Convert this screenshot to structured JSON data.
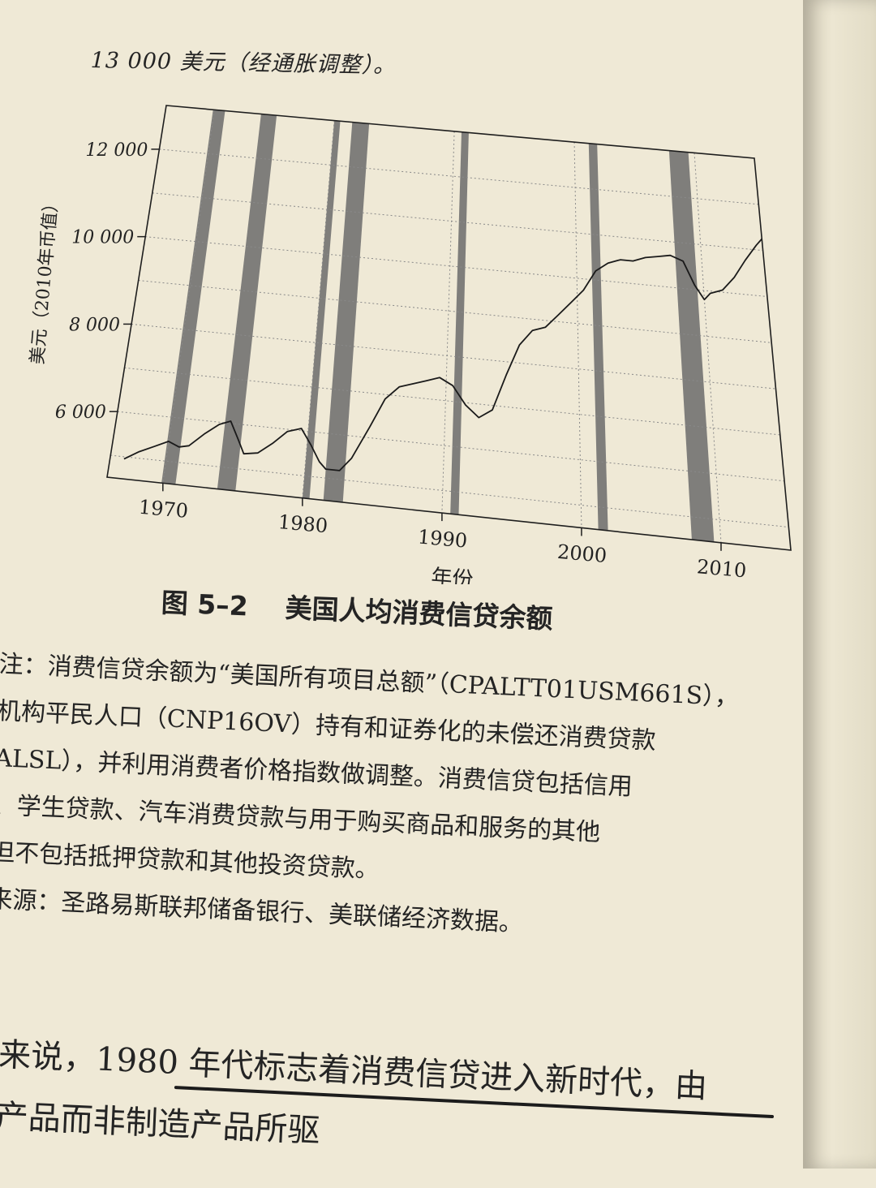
{
  "top_line": "13 000 美元（经通胀调整）。",
  "figure": {
    "number": "图 5–2",
    "title": "美国人均消费信贷余额"
  },
  "notes": [
    "注：消费信贷余额为“美国所有项目总额”（CPALTT01USM661S），",
    "机构平民人口（CNP16OV）持有和证券化的未偿还消费贷款",
    "ALSL），并利用消费者价格指数做调整。消费信贷包括信用",
    "、学生贷款、汽车消费贷款与用于购买商品和服务的其他",
    "但不包括抵押贷款和其他投资贷款。",
    "来源：圣路易斯联邦储备银行、美联储经济数据。"
  ],
  "body_lines": [
    "来说，1980 年代标志着消费信贷进入新时代，由",
    "产品而非制造产品所驱"
  ],
  "chart_data": {
    "type": "line",
    "title": "",
    "xlabel": "年份",
    "ylabel": "美元（2010年币值）",
    "xlim": [
      1966,
      2015
    ],
    "ylim": [
      4500,
      13000
    ],
    "x_ticks": [
      1970,
      1980,
      1990,
      2000,
      2010
    ],
    "x_tick_labels": [
      "1970",
      "1980",
      "1990",
      "2000",
      "2010"
    ],
    "y_ticks": [
      6000,
      8000,
      10000,
      12000
    ],
    "y_tick_labels": [
      "6 000",
      "8 000",
      "10 000",
      "12 000"
    ],
    "grid": true,
    "recession_bands": [
      [
        1969.9,
        1970.9
      ],
      [
        1973.9,
        1975.2
      ],
      [
        1980.0,
        1980.5
      ],
      [
        1981.5,
        1982.9
      ],
      [
        1990.6,
        1991.2
      ],
      [
        2001.2,
        2001.9
      ],
      [
        2007.9,
        2009.5
      ]
    ],
    "colors": {
      "line": "#1a1a1a",
      "band": "#6b6b6b",
      "grid": "#8a8a8a"
    },
    "series": [
      {
        "points": [
          [
            1967.0,
            4950
          ],
          [
            1968.0,
            5150
          ],
          [
            1969.0,
            5300
          ],
          [
            1970.0,
            5450
          ],
          [
            1970.8,
            5350
          ],
          [
            1971.5,
            5400
          ],
          [
            1972.5,
            5700
          ],
          [
            1973.5,
            5950
          ],
          [
            1974.3,
            6050
          ],
          [
            1975.0,
            5650
          ],
          [
            1975.5,
            5350
          ],
          [
            1976.5,
            5400
          ],
          [
            1977.5,
            5650
          ],
          [
            1978.5,
            5950
          ],
          [
            1979.5,
            6050
          ],
          [
            1980.3,
            5700
          ],
          [
            1981.0,
            5350
          ],
          [
            1981.5,
            5200
          ],
          [
            1982.5,
            5200
          ],
          [
            1983.3,
            5500
          ],
          [
            1984.5,
            6250
          ],
          [
            1985.5,
            6900
          ],
          [
            1986.5,
            7200
          ],
          [
            1987.5,
            7300
          ],
          [
            1988.5,
            7400
          ],
          [
            1989.5,
            7500
          ],
          [
            1990.5,
            7350
          ],
          [
            1991.5,
            6950
          ],
          [
            1992.5,
            6700
          ],
          [
            1993.5,
            6900
          ],
          [
            1994.5,
            7700
          ],
          [
            1995.5,
            8400
          ],
          [
            1996.5,
            8750
          ],
          [
            1997.5,
            8850
          ],
          [
            1998.5,
            9150
          ],
          [
            1999.5,
            9450
          ],
          [
            2000.5,
            9750
          ],
          [
            2001.5,
            10200
          ],
          [
            2002.5,
            10400
          ],
          [
            2003.5,
            10500
          ],
          [
            2004.5,
            10500
          ],
          [
            2005.5,
            10600
          ],
          [
            2006.5,
            10650
          ],
          [
            2007.5,
            10700
          ],
          [
            2008.5,
            10600
          ],
          [
            2009.3,
            10100
          ],
          [
            2010.0,
            9800
          ],
          [
            2010.5,
            9950
          ],
          [
            2011.5,
            10050
          ],
          [
            2012.5,
            10350
          ],
          [
            2013.5,
            10750
          ],
          [
            2014.5,
            11100
          ],
          [
            2015.0,
            11250
          ]
        ]
      }
    ]
  }
}
